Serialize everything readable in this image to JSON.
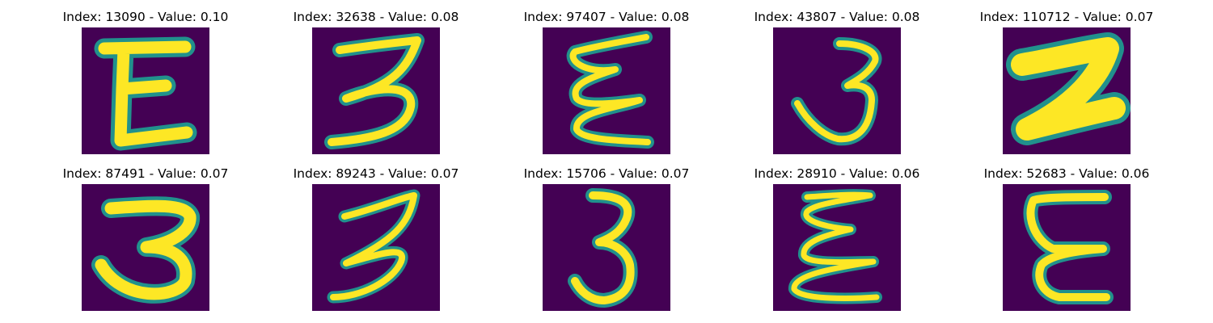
{
  "colors": {
    "background": "#440154",
    "stroke_edge": "#21918c",
    "stroke_core": "#fde725"
  },
  "panels": [
    {
      "title": "Index: 13090 - Value: 0.10",
      "glyph": "E"
    },
    {
      "title": "Index: 32638 - Value: 0.08",
      "glyph": "3"
    },
    {
      "title": "Index: 97407 - Value: 0.08",
      "glyph": "E"
    },
    {
      "title": "Index: 43807 - Value: 0.08",
      "glyph": "3"
    },
    {
      "title": "Index: 110712 - Value: 0.07",
      "glyph": "2"
    },
    {
      "title": "Index: 87491 - Value: 0.07",
      "glyph": "3"
    },
    {
      "title": "Index: 89243 - Value: 0.07",
      "glyph": "3"
    },
    {
      "title": "Index: 15706 - Value: 0.07",
      "glyph": "3"
    },
    {
      "title": "Index: 28910 - Value: 0.06",
      "glyph": "E"
    },
    {
      "title": "Index: 52683 - Value: 0.06",
      "glyph": "E"
    }
  ]
}
